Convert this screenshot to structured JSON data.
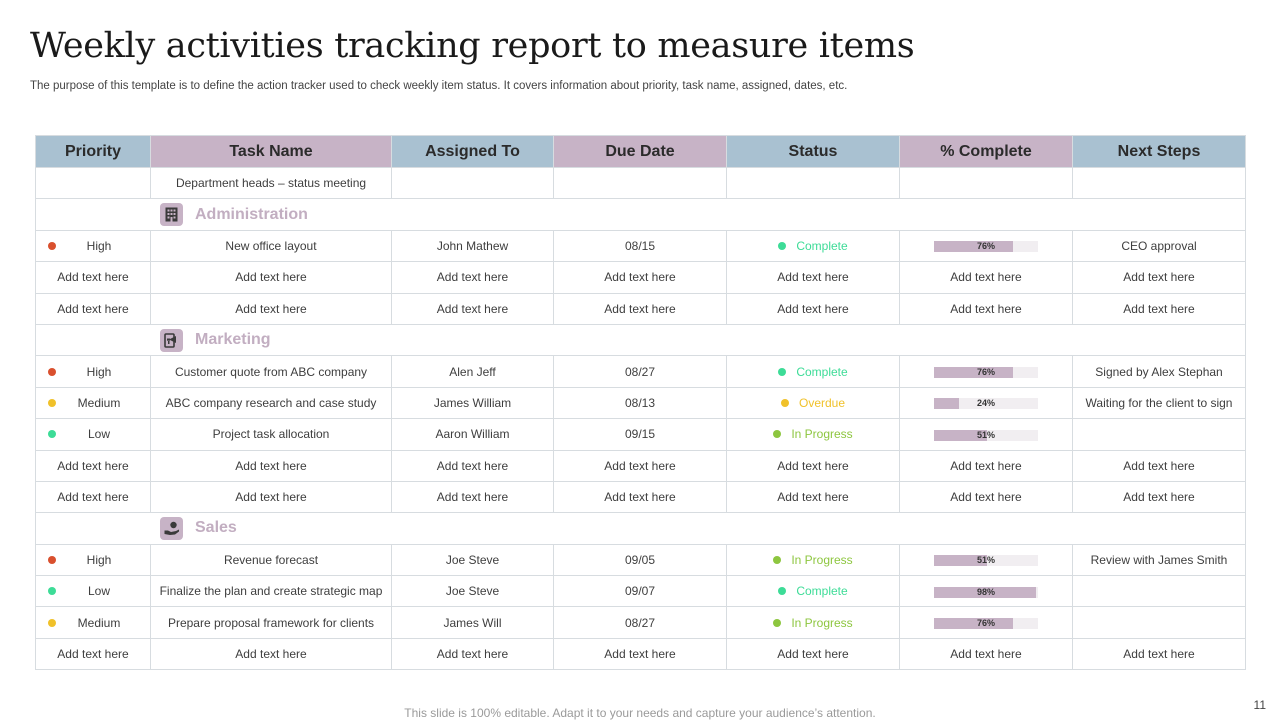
{
  "slide": {
    "title": "Weekly activities tracking report to measure items",
    "subtitle": "The purpose of this template is to define the action tracker used to check weekly item status. It covers information about priority, task name, assigned, dates, etc.",
    "footer": "This slide is 100% editable. Adapt it to your needs and capture your audience’s attention.",
    "page_number": "11"
  },
  "colors": {
    "header_blue": "#a9c1d1",
    "header_mauve": "#c7b3c6",
    "priority_high": "#d9502e",
    "priority_medium": "#f0c12a",
    "priority_low": "#3ddc97",
    "status_complete": "#3ddc97",
    "status_overdue": "#f0c12a",
    "status_in_progress": "#8dc63f",
    "progress_fill": "#c7b3c6"
  },
  "table": {
    "headers": [
      "Priority",
      "Task Name",
      "Assigned To",
      "Due Date",
      "Status",
      "% Complete",
      "Next Steps"
    ],
    "top_row": {
      "task": "Department heads – status meeting"
    },
    "sections": [
      {
        "name": "Administration",
        "icon": "building-icon",
        "rows": [
          {
            "priority": "High",
            "task": "New office layout",
            "assigned": "John Mathew",
            "due": "08/15",
            "status": "Complete",
            "percent": 76,
            "percent_label": "76%",
            "next": "CEO approval"
          },
          {
            "priority": "Add text here",
            "task": "Add text here",
            "assigned": "Add text here",
            "due": "Add text here",
            "status": "Add text here",
            "percent_label": "Add text here",
            "next": "Add text here"
          },
          {
            "priority": "Add text here",
            "task": "Add text here",
            "assigned": "Add text here",
            "due": "Add text here",
            "status": "Add text here",
            "percent_label": "Add text here",
            "next": "Add text here"
          }
        ]
      },
      {
        "name": "Marketing",
        "icon": "marketing-icon",
        "rows": [
          {
            "priority": "High",
            "task": "Customer quote from ABC company",
            "assigned": "Alen Jeff",
            "due": "08/27",
            "status": "Complete",
            "percent": 76,
            "percent_label": "76%",
            "next": "Signed by Alex Stephan"
          },
          {
            "priority": "Medium",
            "task": "ABC company research and case study",
            "assigned": "James William",
            "due": "08/13",
            "status": "Overdue",
            "percent": 24,
            "percent_label": "24%",
            "next": "Waiting for the client to sign"
          },
          {
            "priority": "Low",
            "task": "Project task allocation",
            "assigned": "Aaron William",
            "due": "09/15",
            "status": "In Progress",
            "percent": 51,
            "percent_label": "51%",
            "next": ""
          },
          {
            "priority": "Add text here",
            "task": "Add text here",
            "assigned": "Add text here",
            "due": "Add text here",
            "status": "Add text here",
            "percent_label": "Add text here",
            "next": "Add text here"
          },
          {
            "priority": "Add text here",
            "task": "Add text here",
            "assigned": "Add text here",
            "due": "Add text here",
            "status": "Add text here",
            "percent_label": "Add text here",
            "next": "Add text here"
          }
        ]
      },
      {
        "name": "Sales",
        "icon": "sales-icon",
        "rows": [
          {
            "priority": "High",
            "task": "Revenue forecast",
            "assigned": "Joe Steve",
            "due": "09/05",
            "status": "In Progress",
            "percent": 51,
            "percent_label": "51%",
            "next": "Review with James Smith"
          },
          {
            "priority": "Low",
            "task": "Finalize the plan and create strategic map",
            "assigned": "Joe Steve",
            "due": "09/07",
            "status": "Complete",
            "percent": 98,
            "percent_label": "98%",
            "next": ""
          },
          {
            "priority": "Medium",
            "task": "Prepare proposal framework for clients",
            "assigned": "James Will",
            "due": "08/27",
            "status": "In Progress",
            "percent": 76,
            "percent_label": "76%",
            "next": ""
          },
          {
            "priority": "Add text here",
            "task": "Add text here",
            "assigned": "Add text here",
            "due": "Add text here",
            "status": "Add text here",
            "percent_label": "Add text here",
            "next": "Add text here"
          }
        ]
      }
    ]
  }
}
